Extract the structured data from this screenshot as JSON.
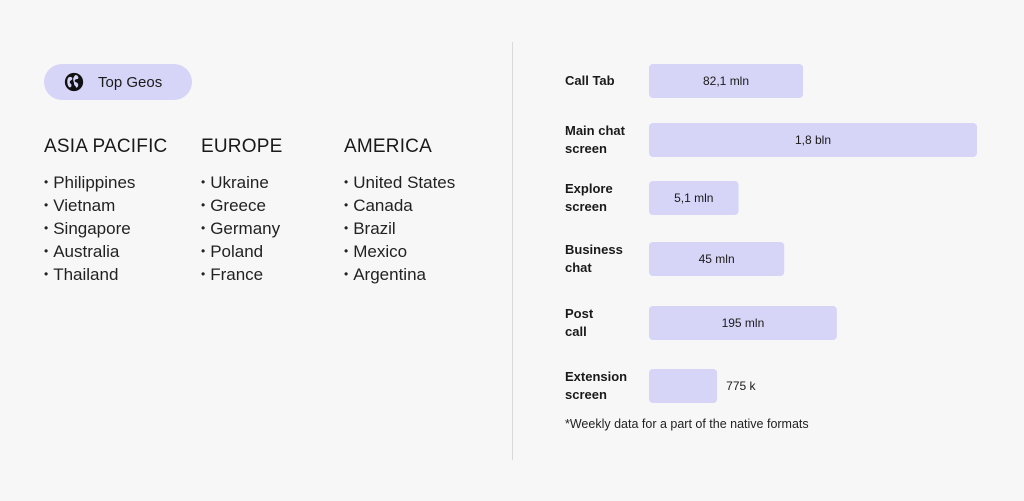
{
  "header": {
    "pill_label": "Top Geos",
    "icon": "globe-icon"
  },
  "regions": [
    {
      "title": "ASIA PACIFIC",
      "countries": [
        "Philippines",
        "Vietnam",
        "Singapore",
        "Australia",
        "Thailand"
      ]
    },
    {
      "title": "EUROPE",
      "countries": [
        "Ukraine",
        "Greece",
        "Germany",
        "Poland",
        "France"
      ]
    },
    {
      "title": "AMERICA",
      "countries": [
        "United States",
        "Canada",
        "Brazil",
        "Mexico",
        "Argentina"
      ]
    }
  ],
  "chart_data": {
    "type": "bar",
    "orientation": "horizontal",
    "unit": "mln",
    "categories": [
      [
        "Call Tab"
      ],
      [
        "Main chat",
        "screen"
      ],
      [
        "Explore",
        "screen"
      ],
      [
        "Business",
        "chat"
      ],
      [
        "Post",
        "call"
      ],
      [
        "Extension",
        "screen"
      ]
    ],
    "values": [
      82.1,
      1800,
      5.1,
      45,
      195,
      0.775
    ],
    "value_labels": [
      "82,1 mln",
      "1,8  bln",
      "5,1 mln",
      "45 mln",
      "195 mln",
      "775 k"
    ],
    "bar_color": "#d6d4f7"
  },
  "footnote": "*Weekly data for a part of the native formats"
}
